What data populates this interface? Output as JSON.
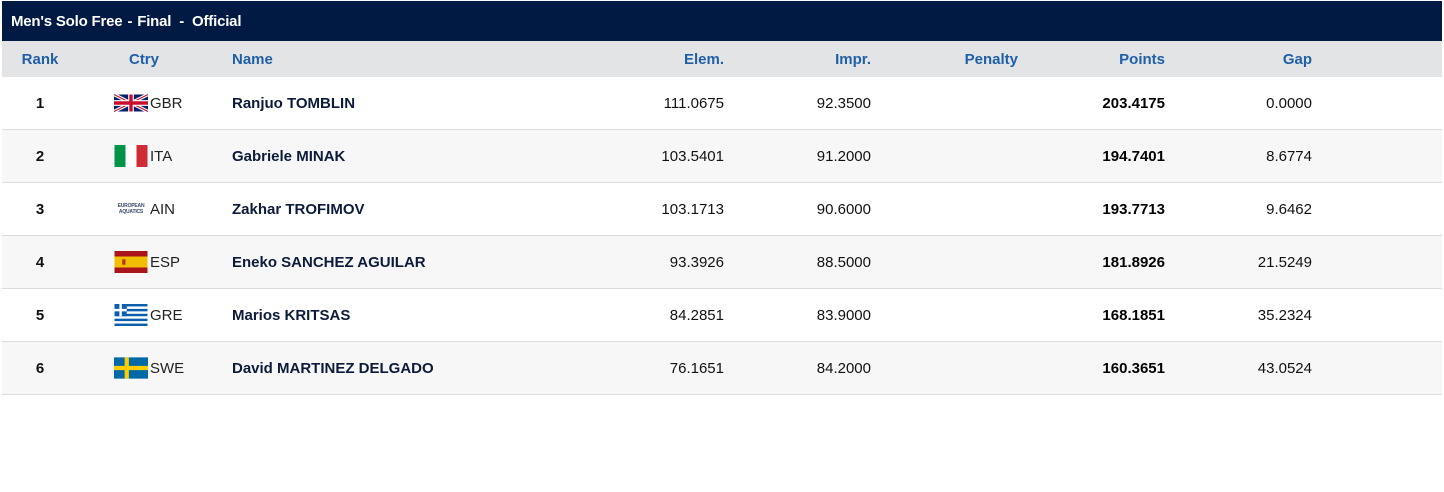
{
  "title": {
    "event": "Men's Solo Free",
    "phase": "Final",
    "status": "Official",
    "separator": "-"
  },
  "columns": {
    "rank": "Rank",
    "ctry": "Ctry",
    "name": "Name",
    "elem": "Elem.",
    "impr": "Impr.",
    "penalty": "Penalty",
    "points": "Points",
    "gap": "Gap"
  },
  "rows": [
    {
      "rank": "1",
      "ctry": "GBR",
      "flag": "gb-flag-icon",
      "name": "Ranjuo TOMBLIN",
      "elem": "111.0675",
      "impr": "92.3500",
      "penalty": "",
      "points": "203.4175",
      "gap": "0.0000"
    },
    {
      "rank": "2",
      "ctry": "ITA",
      "flag": "it-flag-icon",
      "name": "Gabriele MINAK",
      "elem": "103.5401",
      "impr": "91.2000",
      "penalty": "",
      "points": "194.7401",
      "gap": "8.6774"
    },
    {
      "rank": "3",
      "ctry": "AIN",
      "flag": "european-aquatics-logo-icon",
      "name": "Zakhar TROFIMOV",
      "elem": "103.1713",
      "impr": "90.6000",
      "penalty": "",
      "points": "193.7713",
      "gap": "9.6462"
    },
    {
      "rank": "4",
      "ctry": "ESP",
      "flag": "es-flag-icon",
      "name": "Eneko SANCHEZ AGUILAR",
      "elem": "93.3926",
      "impr": "88.5000",
      "penalty": "",
      "points": "181.8926",
      "gap": "21.5249"
    },
    {
      "rank": "5",
      "ctry": "GRE",
      "flag": "gr-flag-icon",
      "name": "Marios KRITSAS",
      "elem": "84.2851",
      "impr": "83.9000",
      "penalty": "",
      "points": "168.1851",
      "gap": "35.2324"
    },
    {
      "rank": "6",
      "ctry": "SWE",
      "flag": "se-flag-icon",
      "name": "David MARTINEZ DELGADO",
      "elem": "76.1651",
      "impr": "84.2000",
      "penalty": "",
      "points": "160.3651",
      "gap": "43.0524"
    }
  ],
  "ain_logo_text": "EUROPEAN AQUATICS",
  "colors": {
    "title_bg": "#001a43",
    "header_bg": "#e3e4e6",
    "header_text": "#1f5fa8"
  }
}
